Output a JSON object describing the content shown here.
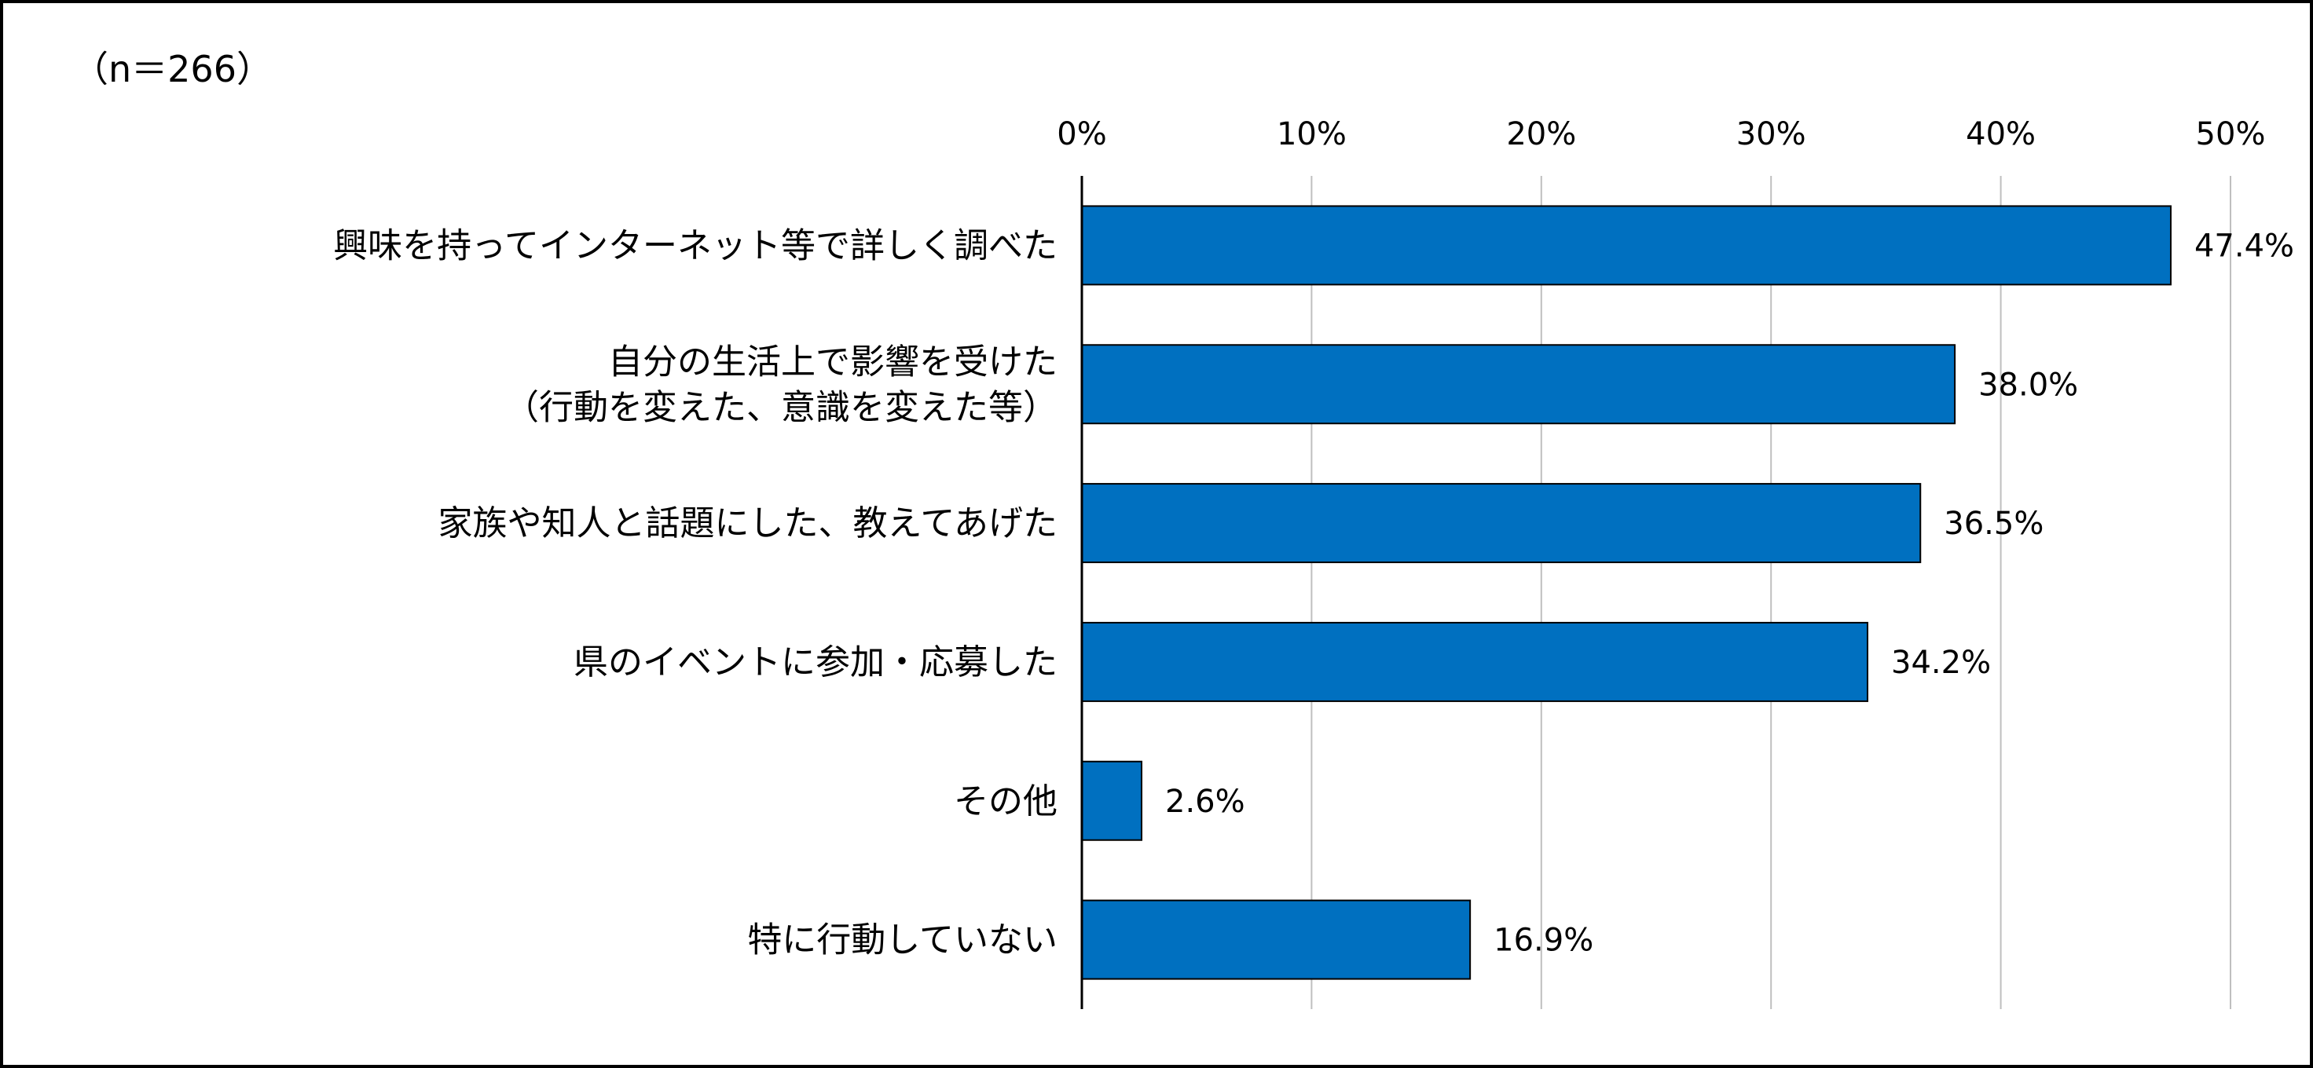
{
  "note": "（n＝266）",
  "colors": {
    "bar": "#0070C0",
    "bar_edge": "#000000",
    "grid": "#BFBFBF",
    "axis": "#000000"
  },
  "chart_data": {
    "type": "bar",
    "orientation": "horizontal",
    "title": "",
    "xlabel": "",
    "ylabel": "",
    "xlim": [
      0,
      50
    ],
    "x_ticks": [
      0,
      10,
      20,
      30,
      40,
      50
    ],
    "x_tick_labels": [
      "0%",
      "10%",
      "20%",
      "30%",
      "40%",
      "50%"
    ],
    "x_axis_position": "top",
    "grid": "vertical",
    "categories": [
      [
        "興味を持ってインターネット等で詳しく調べた"
      ],
      [
        "自分の生活上で影響を受けた",
        "（行動を変えた、意識を変えた等）"
      ],
      [
        "家族や知人と話題にした、教えてあげた"
      ],
      [
        "県のイベントに参加・応募した"
      ],
      [
        "その他"
      ],
      [
        "特に行動していない"
      ]
    ],
    "values": [
      47.4,
      38.0,
      36.5,
      34.2,
      2.6,
      16.9
    ],
    "value_labels": [
      "47.4%",
      "38.0%",
      "36.5%",
      "34.2%",
      "2.6%",
      "16.9%"
    ]
  }
}
